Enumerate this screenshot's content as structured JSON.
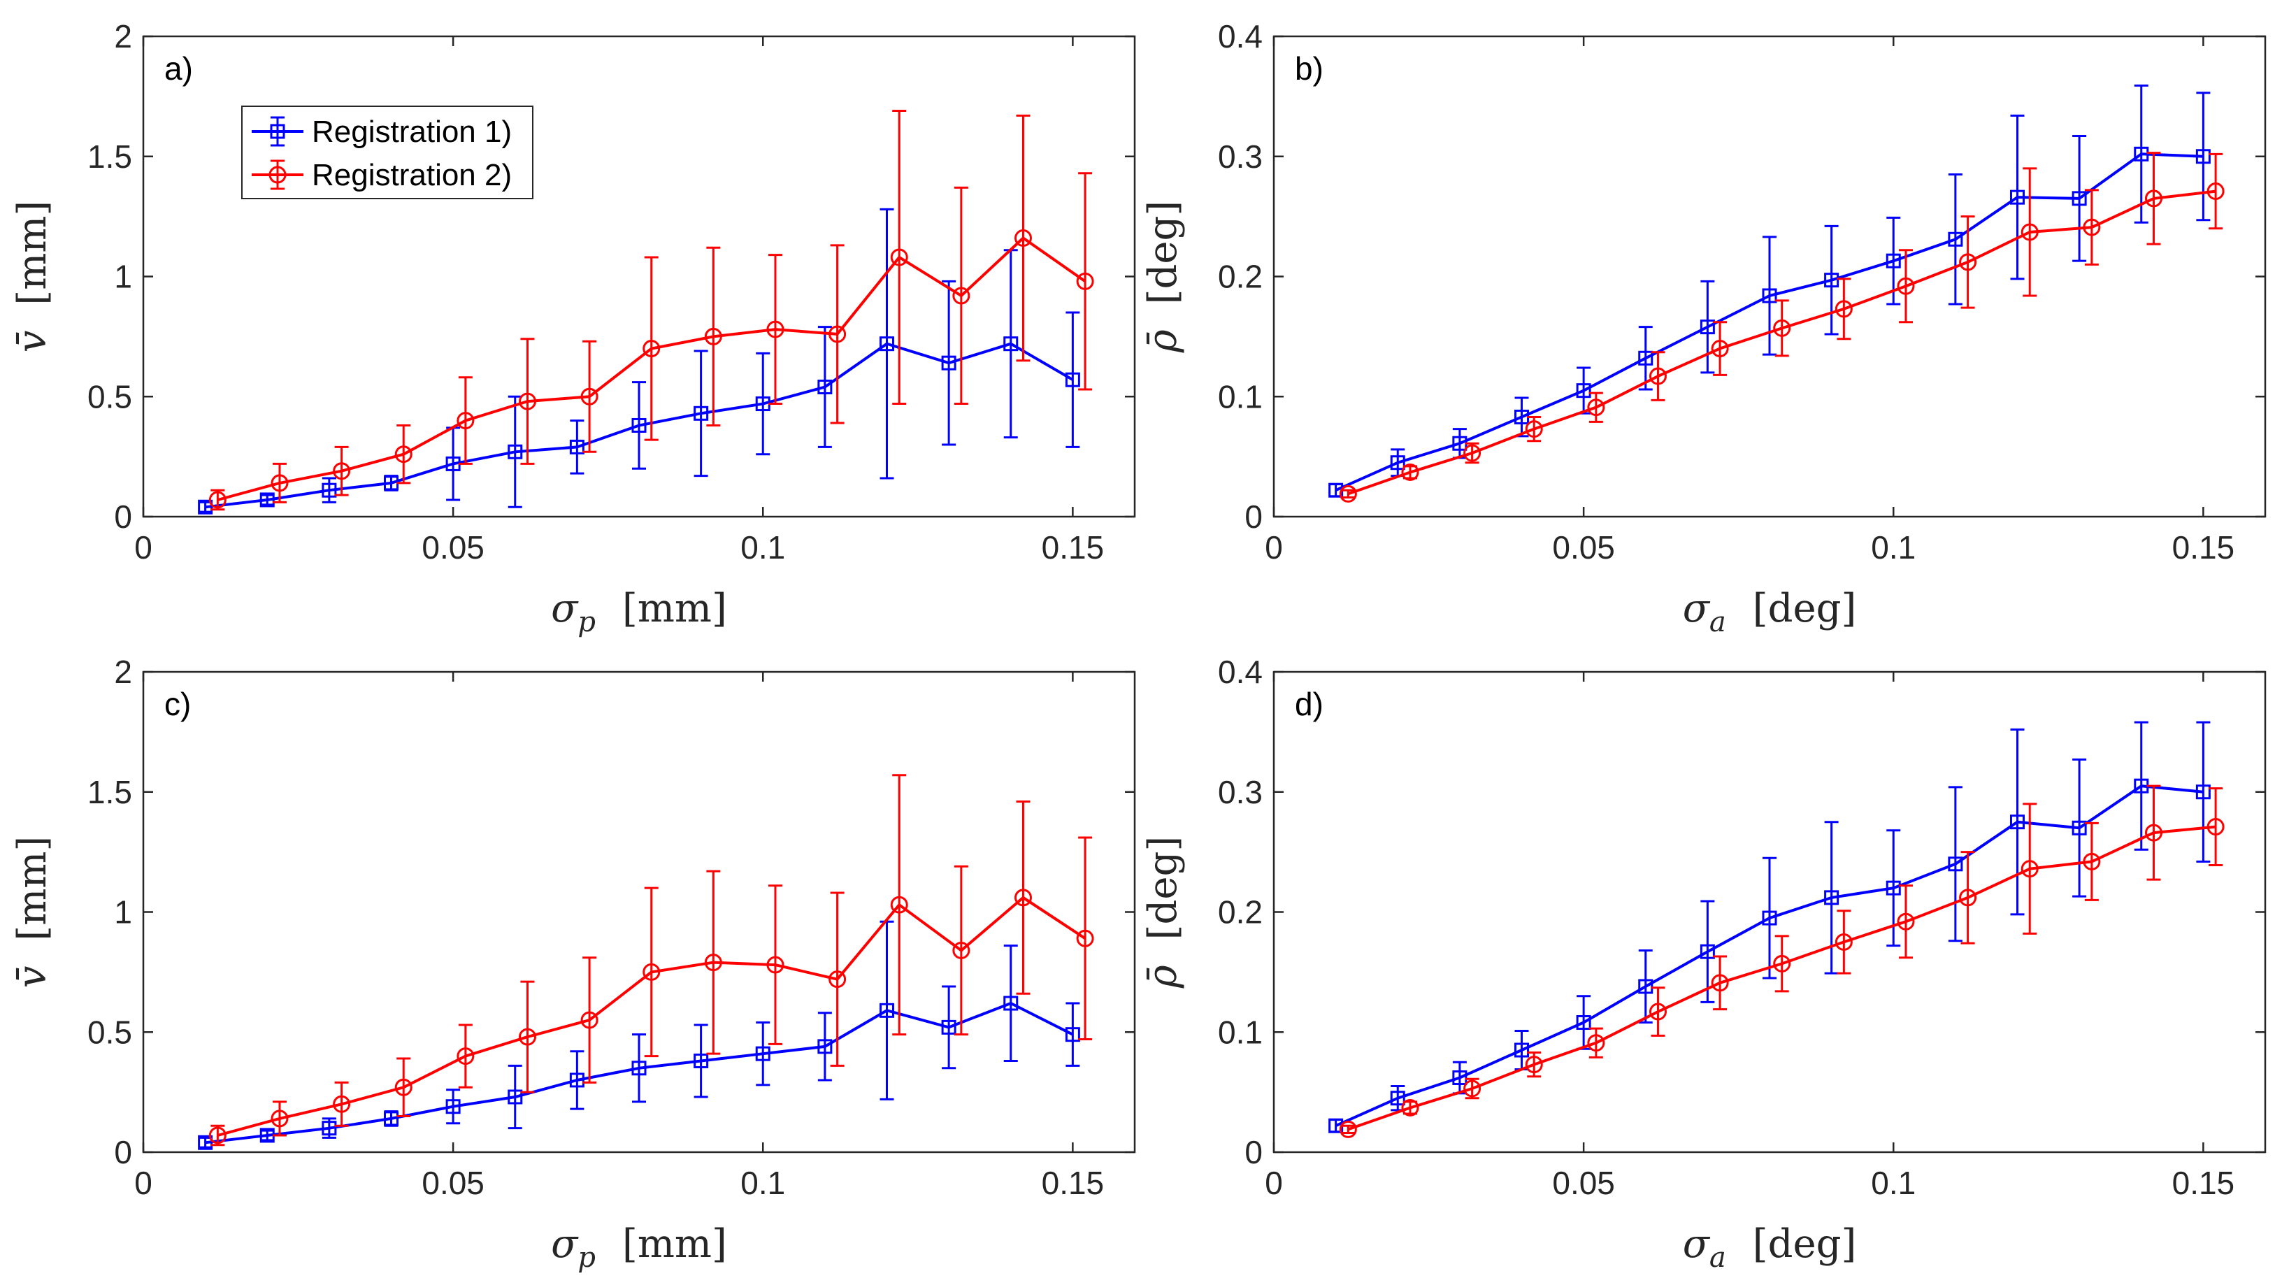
{
  "colors": {
    "registration_1": "#0000ff",
    "registration_2": "#ff0000",
    "axes": "#262626"
  },
  "chart_data": [
    {
      "type": "line",
      "panel_label": "a)",
      "xlabel_symbol": "σ",
      "xlabel_sub": "p",
      "xlabel_unit": "[mm]",
      "ylabel_symbol": "v̄",
      "ylabel_unit": "[mm]",
      "xlim": [
        0,
        0.16
      ],
      "ylim": [
        0,
        2
      ],
      "xticks": [
        0,
        0.05,
        0.1,
        0.15
      ],
      "xtick_labels": [
        "0",
        "0.05",
        "0.1",
        "0.15"
      ],
      "yticks": [
        0,
        0.5,
        1,
        1.5,
        2
      ],
      "ytick_labels": [
        "0",
        "0.5",
        "1",
        "1.5",
        "2"
      ],
      "legend": true,
      "legend_position": "top-left",
      "series": [
        {
          "name": "Registration 1)",
          "marker": "square",
          "color": "#0000ff",
          "x": [
            0.01,
            0.02,
            0.03,
            0.04,
            0.05,
            0.06,
            0.07,
            0.08,
            0.09,
            0.1,
            0.11,
            0.12,
            0.13,
            0.14,
            0.15
          ],
          "y": [
            0.04,
            0.07,
            0.11,
            0.14,
            0.22,
            0.27,
            0.29,
            0.38,
            0.43,
            0.47,
            0.54,
            0.72,
            0.64,
            0.72,
            0.57
          ],
          "err": [
            0.02,
            0.02,
            0.05,
            0.03,
            0.15,
            0.23,
            0.11,
            0.18,
            0.26,
            0.21,
            0.25,
            0.56,
            0.34,
            0.39,
            0.28
          ]
        },
        {
          "name": "Registration 2)",
          "marker": "circle",
          "color": "#ff0000",
          "x": [
            0.012,
            0.022,
            0.032,
            0.042,
            0.052,
            0.062,
            0.072,
            0.082,
            0.092,
            0.102,
            0.112,
            0.122,
            0.132,
            0.142,
            0.152
          ],
          "y": [
            0.07,
            0.14,
            0.19,
            0.26,
            0.4,
            0.48,
            0.5,
            0.7,
            0.75,
            0.78,
            0.76,
            1.08,
            0.92,
            1.16,
            0.98
          ],
          "err": [
            0.04,
            0.08,
            0.1,
            0.12,
            0.18,
            0.26,
            0.23,
            0.38,
            0.37,
            0.31,
            0.37,
            0.61,
            0.45,
            0.51,
            0.45
          ]
        }
      ]
    },
    {
      "type": "line",
      "panel_label": "b)",
      "xlabel_symbol": "σ",
      "xlabel_sub": "a",
      "xlabel_unit": "[deg]",
      "ylabel_symbol": "ρ̄",
      "ylabel_unit": "[deg]",
      "xlim": [
        0,
        0.16
      ],
      "ylim": [
        0,
        0.4
      ],
      "xticks": [
        0,
        0.05,
        0.1,
        0.15
      ],
      "xtick_labels": [
        "0",
        "0.05",
        "0.1",
        "0.15"
      ],
      "yticks": [
        0,
        0.1,
        0.2,
        0.3,
        0.4
      ],
      "ytick_labels": [
        "0",
        "0.1",
        "0.2",
        "0.3",
        "0.4"
      ],
      "legend": false,
      "series": [
        {
          "name": "Registration 1)",
          "marker": "square",
          "color": "#0000ff",
          "x": [
            0.01,
            0.02,
            0.03,
            0.04,
            0.05,
            0.06,
            0.07,
            0.08,
            0.09,
            0.1,
            0.11,
            0.12,
            0.13,
            0.14,
            0.15
          ],
          "y": [
            0.022,
            0.045,
            0.061,
            0.083,
            0.105,
            0.132,
            0.158,
            0.184,
            0.197,
            0.213,
            0.231,
            0.266,
            0.265,
            0.302,
            0.3
          ],
          "err": [
            0.005,
            0.011,
            0.012,
            0.016,
            0.019,
            0.026,
            0.038,
            0.049,
            0.045,
            0.036,
            0.054,
            0.068,
            0.052,
            0.057,
            0.053
          ]
        },
        {
          "name": "Registration 2)",
          "marker": "circle",
          "color": "#ff0000",
          "x": [
            0.012,
            0.022,
            0.032,
            0.042,
            0.052,
            0.062,
            0.072,
            0.082,
            0.092,
            0.102,
            0.112,
            0.122,
            0.132,
            0.142,
            0.152
          ],
          "y": [
            0.019,
            0.037,
            0.053,
            0.073,
            0.091,
            0.117,
            0.14,
            0.157,
            0.173,
            0.192,
            0.212,
            0.237,
            0.241,
            0.265,
            0.271
          ],
          "err": [
            0.003,
            0.005,
            0.008,
            0.01,
            0.012,
            0.02,
            0.022,
            0.023,
            0.025,
            0.03,
            0.038,
            0.053,
            0.031,
            0.038,
            0.031
          ]
        }
      ]
    },
    {
      "type": "line",
      "panel_label": "c)",
      "xlabel_symbol": "σ",
      "xlabel_sub": "p",
      "xlabel_unit": "[mm]",
      "ylabel_symbol": "v̄",
      "ylabel_unit": "[mm]",
      "xlim": [
        0,
        0.16
      ],
      "ylim": [
        0,
        2
      ],
      "xticks": [
        0,
        0.05,
        0.1,
        0.15
      ],
      "xtick_labels": [
        "0",
        "0.05",
        "0.1",
        "0.15"
      ],
      "yticks": [
        0,
        0.5,
        1,
        1.5,
        2
      ],
      "ytick_labels": [
        "0",
        "0.5",
        "1",
        "1.5",
        "2"
      ],
      "legend": false,
      "series": [
        {
          "name": "Registration 1)",
          "marker": "square",
          "color": "#0000ff",
          "x": [
            0.01,
            0.02,
            0.03,
            0.04,
            0.05,
            0.06,
            0.07,
            0.08,
            0.09,
            0.1,
            0.11,
            0.12,
            0.13,
            0.14,
            0.15
          ],
          "y": [
            0.04,
            0.07,
            0.1,
            0.14,
            0.19,
            0.23,
            0.3,
            0.35,
            0.38,
            0.41,
            0.44,
            0.59,
            0.52,
            0.62,
            0.49
          ],
          "err": [
            0.02,
            0.02,
            0.04,
            0.03,
            0.07,
            0.13,
            0.12,
            0.14,
            0.15,
            0.13,
            0.14,
            0.37,
            0.17,
            0.24,
            0.13
          ]
        },
        {
          "name": "Registration 2)",
          "marker": "circle",
          "color": "#ff0000",
          "x": [
            0.012,
            0.022,
            0.032,
            0.042,
            0.052,
            0.062,
            0.072,
            0.082,
            0.092,
            0.102,
            0.112,
            0.122,
            0.132,
            0.142,
            0.152
          ],
          "y": [
            0.07,
            0.14,
            0.2,
            0.27,
            0.4,
            0.48,
            0.55,
            0.75,
            0.79,
            0.78,
            0.72,
            1.03,
            0.84,
            1.06,
            0.89
          ],
          "err": [
            0.04,
            0.07,
            0.09,
            0.12,
            0.13,
            0.23,
            0.26,
            0.35,
            0.38,
            0.33,
            0.36,
            0.54,
            0.35,
            0.4,
            0.42
          ]
        }
      ]
    },
    {
      "type": "line",
      "panel_label": "d)",
      "xlabel_symbol": "σ",
      "xlabel_sub": "a",
      "xlabel_unit": "[deg]",
      "ylabel_symbol": "ρ̄",
      "ylabel_unit": "[deg]",
      "xlim": [
        0,
        0.16
      ],
      "ylim": [
        0,
        0.4
      ],
      "xticks": [
        0,
        0.05,
        0.1,
        0.15
      ],
      "xtick_labels": [
        "0",
        "0.05",
        "0.1",
        "0.15"
      ],
      "yticks": [
        0,
        0.1,
        0.2,
        0.3,
        0.4
      ],
      "ytick_labels": [
        "0",
        "0.1",
        "0.2",
        "0.3",
        "0.4"
      ],
      "legend": false,
      "series": [
        {
          "name": "Registration 1)",
          "marker": "square",
          "color": "#0000ff",
          "x": [
            0.01,
            0.02,
            0.03,
            0.04,
            0.05,
            0.06,
            0.07,
            0.08,
            0.09,
            0.1,
            0.11,
            0.12,
            0.13,
            0.14,
            0.15
          ],
          "y": [
            0.022,
            0.045,
            0.062,
            0.085,
            0.108,
            0.138,
            0.167,
            0.195,
            0.212,
            0.22,
            0.24,
            0.275,
            0.27,
            0.305,
            0.3
          ],
          "err": [
            0.005,
            0.01,
            0.013,
            0.016,
            0.022,
            0.03,
            0.042,
            0.05,
            0.063,
            0.048,
            0.064,
            0.077,
            0.057,
            0.053,
            0.058
          ]
        },
        {
          "name": "Registration 2)",
          "marker": "circle",
          "color": "#ff0000",
          "x": [
            0.012,
            0.022,
            0.032,
            0.042,
            0.052,
            0.062,
            0.072,
            0.082,
            0.092,
            0.102,
            0.112,
            0.122,
            0.132,
            0.142,
            0.152
          ],
          "y": [
            0.019,
            0.037,
            0.053,
            0.073,
            0.091,
            0.117,
            0.141,
            0.157,
            0.175,
            0.192,
            0.212,
            0.236,
            0.242,
            0.266,
            0.271
          ],
          "err": [
            0.003,
            0.005,
            0.008,
            0.01,
            0.012,
            0.02,
            0.022,
            0.023,
            0.026,
            0.03,
            0.038,
            0.054,
            0.032,
            0.039,
            0.032
          ]
        }
      ]
    }
  ]
}
